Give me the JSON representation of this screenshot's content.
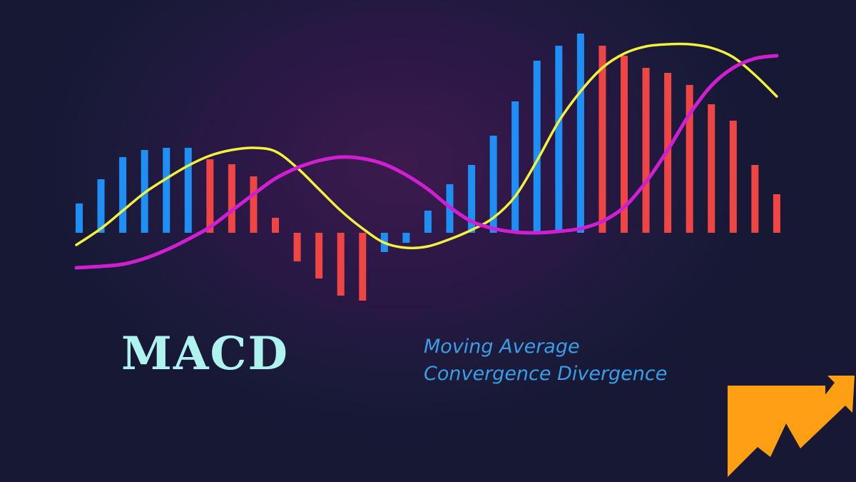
{
  "chart_data": {
    "type": "bar",
    "title": "MACD",
    "subtitle": "Moving Average Convergence Divergence",
    "subtitle_lines": [
      "Moving Average",
      "Convergence Divergence"
    ],
    "xlabel": "",
    "ylabel": "",
    "axes_visible": false,
    "grid": false,
    "ylim": [
      -100,
      285
    ],
    "histogram": {
      "values": [
        41,
        75,
        106,
        116,
        119,
        119,
        103,
        96,
        79,
        21,
        -40,
        -64,
        -88,
        -95,
        -27,
        -14,
        31,
        68,
        95,
        136,
        184,
        241,
        262,
        279,
        262,
        248,
        231,
        224,
        207,
        180,
        157,
        95,
        54
      ],
      "colors": [
        "blue",
        "blue",
        "blue",
        "blue",
        "blue",
        "blue",
        "red",
        "red",
        "red",
        "red",
        "red",
        "red",
        "red",
        "red",
        "blue",
        "blue",
        "blue",
        "blue",
        "blue",
        "blue",
        "blue",
        "blue",
        "blue",
        "blue",
        "red",
        "red",
        "red",
        "red",
        "red",
        "red",
        "red",
        "red",
        "red"
      ]
    },
    "series": [
      {
        "type": "line",
        "color": "#f2f23c",
        "values": [
          -17,
          6,
          31,
          56,
          76,
          94,
          108,
          116,
          119,
          114,
          91,
          61,
          31,
          6,
          -14,
          -21,
          -19,
          -9,
          4,
          21,
          51,
          101,
          156,
          198,
          231,
          251,
          261,
          264,
          264,
          259,
          246,
          221,
          191
        ]
      },
      {
        "type": "line",
        "color": "#d01fd0",
        "values": [
          -49,
          -47,
          -44,
          -36,
          -24,
          -9,
          8,
          31,
          54,
          76,
          91,
          101,
          106,
          104,
          96,
          81,
          61,
          36,
          16,
          6,
          1,
          0,
          2,
          6,
          16,
          36,
          71,
          116,
          166,
          206,
          231,
          244,
          248
        ]
      }
    ],
    "colors": {
      "blue": "#1e8ff5",
      "red": "#f04545",
      "background": "#1b1a3a"
    }
  },
  "logo": {
    "icon": "orange-trend-arrow-icon",
    "color": "#ffa014"
  }
}
